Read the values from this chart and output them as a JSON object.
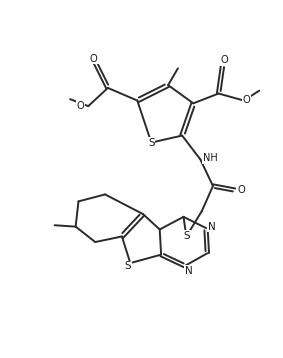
{
  "bg_color": "#ffffff",
  "line_color": "#2a2a2a",
  "line_width": 1.4,
  "figsize": [
    2.83,
    3.58
  ],
  "dpi": 100,
  "xlim": [
    0,
    10
  ],
  "ylim": [
    0,
    12.6
  ]
}
